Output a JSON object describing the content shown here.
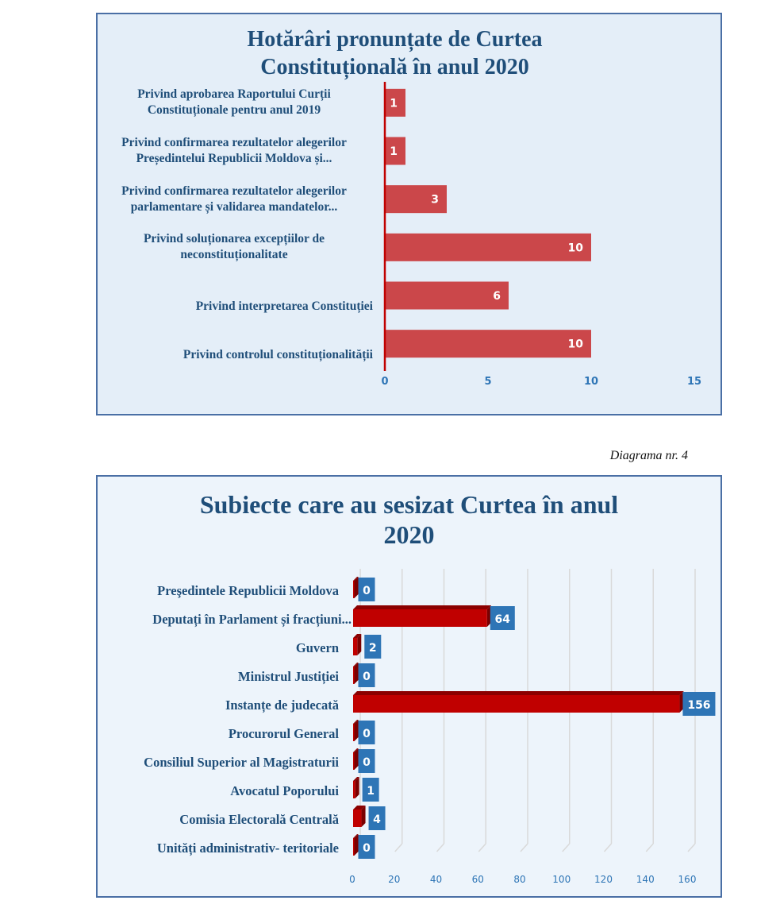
{
  "caption": "Diagrama nr. 4",
  "chart_data": [
    {
      "type": "bar",
      "orientation": "horizontal",
      "title": "Hotărâri pronunțate de Curtea Constituțională în anul 2020",
      "title_lines": [
        "Hotărâri pronunțate de Curtea",
        "Constituțională în anul 2020"
      ],
      "categories": [
        [
          "Privind aprobarea Raportului Curții",
          "Constituționale pentru anul 2019"
        ],
        [
          "Privind confirmarea rezultatelor alegerilor",
          "Președintelui Republicii Moldova și..."
        ],
        [
          "Privind confirmarea rezultatelor alegerilor",
          "parlamentare și validarea mandatelor..."
        ],
        [
          "Privind soluționarea excepțiilor  de",
          "neconstituționalitate"
        ],
        [
          "Privind interpretarea Constituției"
        ],
        [
          "Privind controlul constituționalității"
        ]
      ],
      "values": [
        1,
        1,
        3,
        10,
        6,
        10
      ],
      "value_labels": [
        "1",
        "1",
        "3",
        "10",
        "6",
        "10"
      ],
      "xlim": [
        0,
        15
      ],
      "xticks": [
        "0",
        "5",
        "10",
        "15"
      ],
      "grid": false,
      "colors": {
        "bar": "#cb474a",
        "axis": "#c00000",
        "tick": "#2e75b6",
        "title": "#1f4e79"
      }
    },
    {
      "type": "bar",
      "orientation": "horizontal",
      "style": "3d",
      "title": "Subiecte care au sesizat Curtea în anul 2020",
      "title_lines": [
        "Subiecte care au sesizat Curtea în anul",
        "2020"
      ],
      "categories": [
        "Preşedintele Republicii Moldova",
        "Deputați în Parlament și fracțiuni...",
        "Guvern",
        "Ministrul Justiției",
        "Instanțe de judecată",
        "Procurorul General",
        "Consiliul Superior al Magistraturii",
        "Avocatul Poporului",
        "Comisia Electorală Centrală",
        "Unități administrativ- teritoriale"
      ],
      "values": [
        0,
        64,
        2,
        0,
        156,
        0,
        0,
        1,
        4,
        0
      ],
      "value_labels": [
        "0",
        "64",
        "2",
        "0",
        "156",
        "0",
        "0",
        "1",
        "4",
        "0"
      ],
      "xlim": [
        0,
        160
      ],
      "xticks": [
        "0",
        "20",
        "40",
        "60",
        "80",
        "100",
        "120",
        "140",
        "160"
      ],
      "grid": true,
      "colors": {
        "bar": "#c00000",
        "bar_top": "#8b0000",
        "label_bg": "#2e75b6",
        "tick": "#2e75b6",
        "grid": "#d9d9d9",
        "title": "#1f4e79"
      }
    }
  ]
}
